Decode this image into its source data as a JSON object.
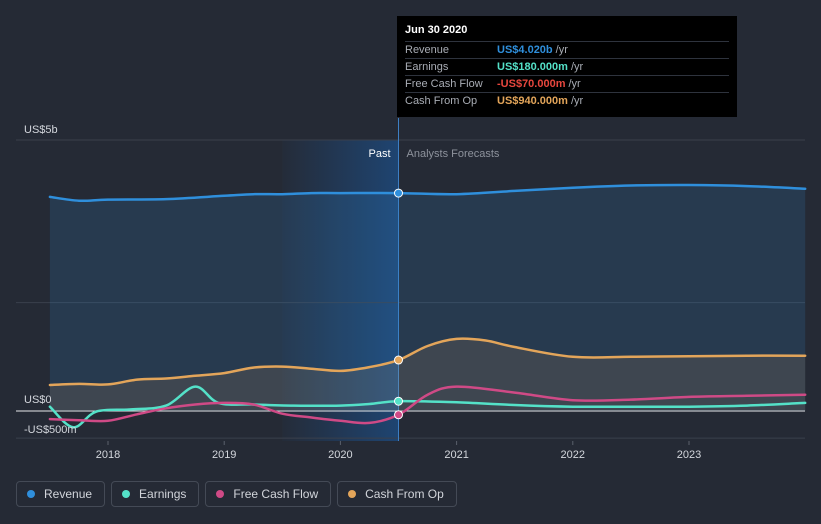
{
  "chart_data": {
    "type": "area",
    "y_unit": "US$ millions",
    "ylim": [
      -500,
      5000
    ],
    "y_tick_labels": [
      {
        "value": 5000,
        "label": "US$5b"
      },
      {
        "value": 0,
        "label": "US$0"
      },
      {
        "value": -500,
        "label": "-US$500m"
      }
    ],
    "xlim": [
      2017.5,
      2024.0
    ],
    "x_ticks": [
      2018,
      2019,
      2020,
      2021,
      2022,
      2023
    ],
    "past_forecast_split": 2020.5,
    "past_label": "Past",
    "forecast_label": "Analysts Forecasts",
    "series": [
      {
        "name": "Revenue",
        "color": "#2f8fdc",
        "points": [
          [
            2017.5,
            3950
          ],
          [
            2017.75,
            3880
          ],
          [
            2018.0,
            3900
          ],
          [
            2018.5,
            3910
          ],
          [
            2019.0,
            3970
          ],
          [
            2019.25,
            4000
          ],
          [
            2019.5,
            4000
          ],
          [
            2019.75,
            4020
          ],
          [
            2020.0,
            4020
          ],
          [
            2020.5,
            4020
          ],
          [
            2021.0,
            4000
          ],
          [
            2021.5,
            4060
          ],
          [
            2022.0,
            4120
          ],
          [
            2022.5,
            4160
          ],
          [
            2023.0,
            4170
          ],
          [
            2023.5,
            4150
          ],
          [
            2024.0,
            4100
          ]
        ]
      },
      {
        "name": "Earnings",
        "color": "#54e1c8",
        "points": [
          [
            2017.5,
            80
          ],
          [
            2017.7,
            -300
          ],
          [
            2017.9,
            -10
          ],
          [
            2018.2,
            30
          ],
          [
            2018.5,
            100
          ],
          [
            2018.75,
            450
          ],
          [
            2018.95,
            150
          ],
          [
            2019.25,
            120
          ],
          [
            2019.6,
            100
          ],
          [
            2020.0,
            100
          ],
          [
            2020.25,
            130
          ],
          [
            2020.5,
            180
          ],
          [
            2021.0,
            160
          ],
          [
            2021.5,
            110
          ],
          [
            2022.0,
            80
          ],
          [
            2022.5,
            80
          ],
          [
            2023.0,
            80
          ],
          [
            2023.5,
            100
          ],
          [
            2024.0,
            150
          ]
        ]
      },
      {
        "name": "Free Cash Flow",
        "color": "#cf4a86",
        "points": [
          [
            2017.5,
            -150
          ],
          [
            2017.75,
            -170
          ],
          [
            2018.0,
            -180
          ],
          [
            2018.25,
            -60
          ],
          [
            2018.5,
            50
          ],
          [
            2018.75,
            120
          ],
          [
            2019.0,
            150
          ],
          [
            2019.25,
            120
          ],
          [
            2019.5,
            -50
          ],
          [
            2019.75,
            -120
          ],
          [
            2020.0,
            -180
          ],
          [
            2020.25,
            -220
          ],
          [
            2020.5,
            -70
          ],
          [
            2020.75,
            300
          ],
          [
            2021.0,
            450
          ],
          [
            2021.5,
            340
          ],
          [
            2022.0,
            200
          ],
          [
            2022.5,
            210
          ],
          [
            2023.0,
            260
          ],
          [
            2023.5,
            280
          ],
          [
            2024.0,
            300
          ]
        ]
      },
      {
        "name": "Cash From Op",
        "color": "#e3a55a",
        "points": [
          [
            2017.5,
            480
          ],
          [
            2017.75,
            500
          ],
          [
            2018.0,
            490
          ],
          [
            2018.25,
            580
          ],
          [
            2018.5,
            600
          ],
          [
            2018.75,
            650
          ],
          [
            2019.0,
            700
          ],
          [
            2019.25,
            800
          ],
          [
            2019.5,
            820
          ],
          [
            2019.75,
            780
          ],
          [
            2020.0,
            740
          ],
          [
            2020.25,
            810
          ],
          [
            2020.5,
            940
          ],
          [
            2020.75,
            1200
          ],
          [
            2021.0,
            1330
          ],
          [
            2021.25,
            1300
          ],
          [
            2021.5,
            1180
          ],
          [
            2022.0,
            1000
          ],
          [
            2022.5,
            1000
          ],
          [
            2023.0,
            1010
          ],
          [
            2023.5,
            1020
          ],
          [
            2024.0,
            1020
          ]
        ]
      }
    ]
  },
  "tooltip": {
    "date": "Jun 30 2020",
    "rows": [
      {
        "label": "Revenue",
        "value": "US$4.020b",
        "unit": "/yr",
        "color": "#2f8fdc"
      },
      {
        "label": "Earnings",
        "value": "US$180.000m",
        "unit": "/yr",
        "color": "#54e1c8"
      },
      {
        "label": "Free Cash Flow",
        "value": "-US$70.000m",
        "unit": "/yr",
        "color": "#e8473e"
      },
      {
        "label": "Cash From Op",
        "value": "US$940.000m",
        "unit": "/yr",
        "color": "#e3a55a"
      }
    ]
  },
  "legend": [
    {
      "label": "Revenue",
      "color": "#2f8fdc"
    },
    {
      "label": "Earnings",
      "color": "#54e1c8"
    },
    {
      "label": "Free Cash Flow",
      "color": "#cf4a86"
    },
    {
      "label": "Cash From Op",
      "color": "#e3a55a"
    }
  ]
}
